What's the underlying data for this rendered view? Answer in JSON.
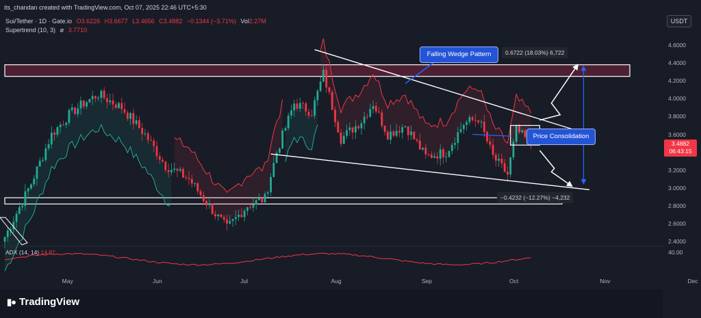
{
  "header": {
    "created_by": "its_chandan created with TradingView.com, Oct 07, 2025 22:46 UTC+5:30",
    "symbol": "Sui/Tether · 1D · Gate.io",
    "open": "O3.6226",
    "high": "H3.6677",
    "low": "L3.4656",
    "close": "C3.4882",
    "change": "−0.1344 (−3.71%)",
    "vol_label": "Vol",
    "vol_value": "2.27M",
    "supertrend_label": "Supertrend (10, 3)",
    "supertrend_value": "3.7710"
  },
  "currency_button": "USDT",
  "price_axis": [
    "4.6000",
    "4.4000",
    "4.2000",
    "4.0000",
    "3.8000",
    "3.6000",
    "3.4000",
    "3.2000",
    "3.0000",
    "2.8000",
    "2.6000",
    "2.4000"
  ],
  "last_price": {
    "price": "3.4882",
    "countdown": "06:43:15"
  },
  "adx": {
    "label": "ADX (14, 14)",
    "value": "14.97",
    "axis": "40.00"
  },
  "time_axis": [
    "May",
    "Jun",
    "Jul",
    "Aug",
    "Sep",
    "Oct",
    "Nov",
    "Dec"
  ],
  "annotations": {
    "wedge": "Falling Wedge Pattern",
    "consolidation": "Price Consolidation",
    "target_up": "0.6722 (18.03%) 6,722",
    "target_down": "−0.4232 (−12.27%) −4,232"
  },
  "brand": "TradingView",
  "colors": {
    "up": "#22ab94",
    "down": "#f23645",
    "bg": "#181c27",
    "accent": "#2454d6"
  },
  "chart_data": {
    "type": "candlestick",
    "title": "Sui/Tether · 1D · Gate.io",
    "ylim": [
      2.3,
      4.75
    ],
    "x_range": [
      "2025-04-10",
      "2025-12-20"
    ],
    "grid": false,
    "overlays": [
      "Supertrend (10, 3)",
      "Falling Wedge Pattern",
      "Resistance zone",
      "Support zone"
    ],
    "anchors": [
      {
        "date": "2025-04-10",
        "price": 2.45
      },
      {
        "date": "2025-04-19",
        "price": 3.05
      },
      {
        "date": "2025-04-26",
        "price": 3.6
      },
      {
        "date": "2025-05-02",
        "price": 3.82
      },
      {
        "date": "2025-05-07",
        "price": 3.95
      },
      {
        "date": "2025-05-12",
        "price": 4.05
      },
      {
        "date": "2025-05-20",
        "price": 3.9
      },
      {
        "date": "2025-05-28",
        "price": 3.6
      },
      {
        "date": "2025-06-04",
        "price": 3.25
      },
      {
        "date": "2025-06-12",
        "price": 3.1
      },
      {
        "date": "2025-06-20",
        "price": 2.75
      },
      {
        "date": "2025-06-25",
        "price": 2.55
      },
      {
        "date": "2025-07-02",
        "price": 2.8
      },
      {
        "date": "2025-07-08",
        "price": 2.88
      },
      {
        "date": "2025-07-12",
        "price": 3.4
      },
      {
        "date": "2025-07-18",
        "price": 3.95
      },
      {
        "date": "2025-07-24",
        "price": 3.85
      },
      {
        "date": "2025-07-28",
        "price": 4.28
      },
      {
        "date": "2025-08-03",
        "price": 3.55
      },
      {
        "date": "2025-08-10",
        "price": 3.75
      },
      {
        "date": "2025-08-14",
        "price": 3.95
      },
      {
        "date": "2025-08-19",
        "price": 3.6
      },
      {
        "date": "2025-08-25",
        "price": 3.7
      },
      {
        "date": "2025-09-01",
        "price": 3.35
      },
      {
        "date": "2025-09-08",
        "price": 3.4
      },
      {
        "date": "2025-09-14",
        "price": 3.72
      },
      {
        "date": "2025-09-19",
        "price": 3.78
      },
      {
        "date": "2025-09-24",
        "price": 3.35
      },
      {
        "date": "2025-09-29",
        "price": 3.15
      },
      {
        "date": "2025-10-02",
        "price": 3.65
      },
      {
        "date": "2025-10-07",
        "price": 3.49
      }
    ],
    "last_close": 3.4882
  }
}
